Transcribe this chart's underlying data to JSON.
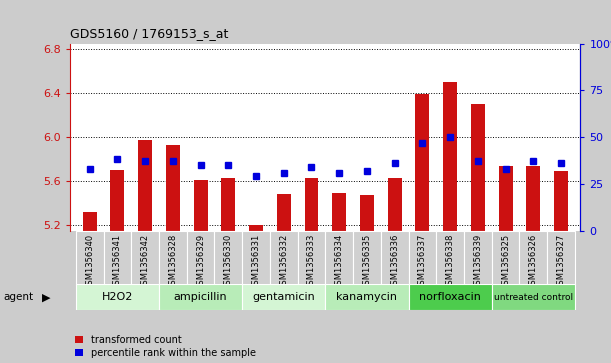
{
  "title": "GDS5160 / 1769153_s_at",
  "samples": [
    "GSM1356340",
    "GSM1356341",
    "GSM1356342",
    "GSM1356328",
    "GSM1356329",
    "GSM1356330",
    "GSM1356331",
    "GSM1356332",
    "GSM1356333",
    "GSM1356334",
    "GSM1356335",
    "GSM1356336",
    "GSM1356337",
    "GSM1356338",
    "GSM1356339",
    "GSM1356325",
    "GSM1356326",
    "GSM1356327"
  ],
  "transformed_count": [
    5.32,
    5.7,
    5.97,
    5.93,
    5.61,
    5.63,
    5.2,
    5.48,
    5.63,
    5.49,
    5.47,
    5.63,
    6.39,
    6.5,
    6.3,
    5.74,
    5.74,
    5.69
  ],
  "percentile_rank": [
    33,
    38,
    37,
    37,
    35,
    35,
    29,
    31,
    34,
    31,
    32,
    36,
    47,
    50,
    37,
    33,
    37,
    36
  ],
  "groups": [
    {
      "label": "H2O2",
      "start": 0,
      "end": 3,
      "color": "#d4f5d4"
    },
    {
      "label": "ampicillin",
      "start": 3,
      "end": 6,
      "color": "#b8ecb8"
    },
    {
      "label": "gentamicin",
      "start": 6,
      "end": 9,
      "color": "#d4f5d4"
    },
    {
      "label": "kanamycin",
      "start": 9,
      "end": 12,
      "color": "#b8ecb8"
    },
    {
      "label": "norfloxacin",
      "start": 12,
      "end": 15,
      "color": "#4dcc4d"
    },
    {
      "label": "untreated control",
      "start": 15,
      "end": 18,
      "color": "#80d980"
    }
  ],
  "bar_color": "#cc1111",
  "dot_color": "#0000dd",
  "ylim_left": [
    5.15,
    6.85
  ],
  "ylim_right": [
    0,
    100
  ],
  "yticks_left": [
    5.2,
    5.6,
    6.0,
    6.4,
    6.8
  ],
  "yticks_right": [
    0,
    25,
    50,
    75,
    100
  ],
  "ylabel_left_color": "#cc1111",
  "ylabel_right_color": "#0000dd",
  "background_color": "#cccccc",
  "plot_bg_color": "#ffffff",
  "cell_bg_color": "#d0d0d0",
  "agent_label": "agent",
  "bar_width": 0.5,
  "baseline": 5.15
}
